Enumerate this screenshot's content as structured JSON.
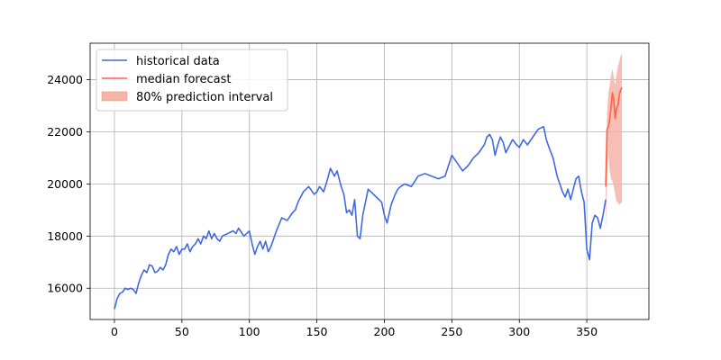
{
  "chart_data": {
    "type": "line",
    "title": "",
    "xlabel": "",
    "ylabel": "",
    "xlim": [
      -18,
      396
    ],
    "ylim": [
      14800,
      25400
    ],
    "xticks": [
      0,
      50,
      100,
      150,
      200,
      250,
      300,
      350
    ],
    "yticks": [
      16000,
      18000,
      20000,
      22000,
      24000
    ],
    "xtick_labels": [
      "0",
      "50",
      "100",
      "150",
      "200",
      "250",
      "300",
      "350"
    ],
    "ytick_labels": [
      "16000",
      "18000",
      "20000",
      "22000",
      "24000"
    ],
    "grid": true,
    "legend_position": "top-left",
    "legend": [
      "historical data",
      "median forecast",
      "80% prediction interval"
    ],
    "colors": {
      "historical": "#4169e1",
      "forecast": "#ff6347",
      "interval": "#f6b3a8"
    },
    "series": [
      {
        "name": "historical data",
        "x": [
          0,
          2,
          4,
          6,
          8,
          10,
          12,
          14,
          16,
          18,
          20,
          22,
          24,
          26,
          28,
          30,
          32,
          34,
          36,
          38,
          40,
          42,
          44,
          46,
          48,
          50,
          52,
          54,
          56,
          58,
          60,
          62,
          64,
          66,
          68,
          70,
          72,
          74,
          76,
          78,
          80,
          84,
          88,
          90,
          92,
          96,
          100,
          102,
          104,
          106,
          108,
          110,
          112,
          114,
          116,
          120,
          124,
          128,
          132,
          134,
          136,
          140,
          144,
          148,
          150,
          152,
          155,
          158,
          160,
          163,
          165,
          168,
          170,
          172,
          174,
          176,
          178,
          180,
          182,
          184,
          186,
          188,
          190,
          194,
          198,
          200,
          202,
          205,
          208,
          210,
          212,
          215,
          220,
          225,
          230,
          235,
          240,
          245,
          250,
          254,
          258,
          262,
          266,
          270,
          274,
          276,
          278,
          280,
          282,
          284,
          286,
          288,
          290,
          292,
          295,
          298,
          300,
          303,
          306,
          310,
          314,
          318,
          320,
          322,
          325,
          328,
          332,
          334,
          336,
          338,
          340,
          342,
          344,
          346,
          348,
          350,
          352,
          354,
          356,
          358,
          360,
          362,
          364
        ],
        "values": [
          15200,
          15600,
          15800,
          15850,
          16000,
          15950,
          16000,
          15950,
          15800,
          16200,
          16500,
          16700,
          16600,
          16900,
          16850,
          16600,
          16650,
          16800,
          16700,
          16900,
          17300,
          17500,
          17400,
          17600,
          17300,
          17500,
          17500,
          17700,
          17400,
          17600,
          17700,
          17900,
          17700,
          18000,
          17900,
          18200,
          17900,
          18100,
          17900,
          17800,
          18000,
          18100,
          18200,
          18100,
          18300,
          18000,
          18200,
          17700,
          17300,
          17600,
          17800,
          17500,
          17800,
          17400,
          17600,
          18200,
          18700,
          18600,
          18900,
          19000,
          19300,
          19700,
          19900,
          19600,
          19700,
          19900,
          19700,
          20200,
          20600,
          20300,
          20500,
          19900,
          19600,
          18900,
          19000,
          18800,
          19400,
          18000,
          17900,
          18800,
          19300,
          19800,
          19700,
          19500,
          19300,
          18800,
          18500,
          19200,
          19600,
          19800,
          19900,
          20000,
          19900,
          20300,
          20400,
          20300,
          20200,
          20300,
          21100,
          20800,
          20500,
          20700,
          21000,
          21200,
          21500,
          21800,
          21900,
          21700,
          21100,
          21500,
          21800,
          21600,
          21200,
          21400,
          21700,
          21500,
          21400,
          21700,
          21500,
          21800,
          22100,
          22200,
          21700,
          21400,
          21000,
          20300,
          19700,
          19500,
          19800,
          19400,
          19800,
          20200,
          20300,
          19700,
          19300,
          17500,
          17100,
          18500,
          18800,
          18700,
          18300,
          18800,
          19400
        ]
      },
      {
        "name": "median forecast",
        "x": [
          364,
          365,
          366,
          367,
          368,
          369,
          370,
          371,
          372,
          373,
          374,
          375,
          376
        ],
        "values": [
          19900,
          22100,
          22200,
          22500,
          23000,
          23500,
          23200,
          22500,
          22900,
          23000,
          23400,
          23600,
          23700
        ]
      }
    ],
    "interval": {
      "name": "80% prediction interval",
      "x": [
        364,
        365,
        366,
        367,
        368,
        369,
        370,
        371,
        372,
        373,
        374,
        375,
        376
      ],
      "lower": [
        18200,
        20200,
        21200,
        20500,
        20200,
        20100,
        19900,
        19600,
        19300,
        19300,
        19200,
        19250,
        19300
      ],
      "upper": [
        20300,
        22700,
        23500,
        23800,
        24200,
        24400,
        24100,
        23800,
        24200,
        24500,
        24700,
        24900,
        25000
      ]
    }
  }
}
